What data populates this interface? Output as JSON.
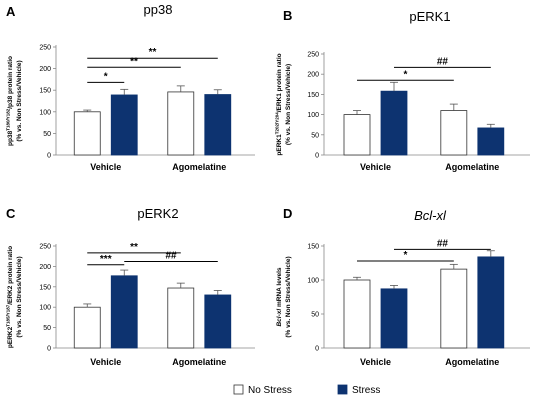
{
  "chart_data": [
    {
      "type": "bar",
      "letter": "A",
      "title": "pp38",
      "title_italic": false,
      "ylabel_line1": "pp38",
      "ylabel_sup": "T180/Y182",
      "ylabel_rest": "/p38 protein ratio",
      "ylabel_line2": "(% vs. Non Stress/Vehicle)",
      "categories": [
        "Vehicle",
        "Agomelatine"
      ],
      "ylim": [
        0,
        250
      ],
      "yticks": [
        "0",
        "50",
        "100",
        "150",
        "200",
        "250"
      ],
      "series": [
        {
          "name": "No Stress",
          "values": [
            100,
            146
          ],
          "errors": [
            4,
            14
          ]
        },
        {
          "name": "Stress",
          "values": [
            139,
            140
          ],
          "errors": [
            13,
            11
          ]
        }
      ],
      "significance": [
        {
          "label": "*",
          "from": [
            0,
            0
          ],
          "to": [
            0,
            1
          ],
          "y": 168
        },
        {
          "label": "**",
          "from": [
            0,
            0
          ],
          "to": [
            1,
            0
          ],
          "y": 203
        },
        {
          "label": "**",
          "from": [
            0,
            0
          ],
          "to": [
            1,
            1
          ],
          "y": 224
        }
      ]
    },
    {
      "type": "bar",
      "letter": "B",
      "title": "pERK1",
      "title_italic": false,
      "ylabel_line1": "pERK1",
      "ylabel_sup": "T202/Y204",
      "ylabel_rest": "/ERK1 protein ratio",
      "ylabel_line2": "(% vs. Non Stress/Vehicle)",
      "categories": [
        "Vehicle",
        "Agomelatine"
      ],
      "ylim": [
        0,
        250
      ],
      "yticks": [
        "0",
        "50",
        "100",
        "150",
        "200",
        "250"
      ],
      "series": [
        {
          "name": "No Stress",
          "values": [
            100,
            110
          ],
          "errors": [
            10,
            16
          ]
        },
        {
          "name": "Stress",
          "values": [
            158,
            67
          ],
          "errors": [
            22,
            9
          ]
        }
      ],
      "significance": [
        {
          "label": "*",
          "from": [
            0,
            0
          ],
          "to": [
            1,
            0
          ],
          "y": 185
        },
        {
          "label": "##",
          "from": [
            0,
            1
          ],
          "to": [
            1,
            1
          ],
          "y": 217
        }
      ]
    },
    {
      "type": "bar",
      "letter": "C",
      "title": "pERK2",
      "title_italic": false,
      "ylabel_line1": "pERK2",
      "ylabel_sup": "T185/Y187",
      "ylabel_rest": "/ERK2 protein ratio",
      "ylabel_line2": "(% vs. Non Stress/Vehicle)",
      "categories": [
        "Vehicle",
        "Agomelatine"
      ],
      "ylim": [
        0,
        250
      ],
      "yticks": [
        "0",
        "50",
        "100",
        "150",
        "200",
        "250"
      ],
      "series": [
        {
          "name": "No Stress",
          "values": [
            100,
            147
          ],
          "errors": [
            8,
            12
          ]
        },
        {
          "name": "Stress",
          "values": [
            177,
            130
          ],
          "errors": [
            14,
            11
          ]
        }
      ],
      "significance": [
        {
          "label": "***",
          "from": [
            0,
            0
          ],
          "to": [
            0,
            1
          ],
          "y": 204
        },
        {
          "label": "##",
          "from": [
            0,
            1
          ],
          "to": [
            1,
            1
          ],
          "y": 212
        },
        {
          "label": "**",
          "from": [
            0,
            0
          ],
          "to": [
            1,
            0
          ],
          "y": 233
        }
      ]
    },
    {
      "type": "bar",
      "letter": "D",
      "title": "Bcl-xl",
      "title_italic": true,
      "ylabel_line1": "Bcl-xl",
      "ylabel_line1_italic": true,
      "ylabel_sup": "",
      "ylabel_rest": " mRNA levels",
      "ylabel_line2": "(% vs. Non Stress/Vehicle)",
      "categories": [
        "Vehicle",
        "Agomelatine"
      ],
      "ylim": [
        0,
        150
      ],
      "yticks": [
        "0",
        "50",
        "100",
        "150"
      ],
      "series": [
        {
          "name": "No Stress",
          "values": [
            100,
            116
          ],
          "errors": [
            4,
            7
          ]
        },
        {
          "name": "Stress",
          "values": [
            87,
            134
          ],
          "errors": [
            5,
            9
          ]
        }
      ],
      "significance": [
        {
          "label": "*",
          "from": [
            0,
            0
          ],
          "to": [
            1,
            0
          ],
          "y": 128
        },
        {
          "label": "##",
          "from": [
            0,
            1
          ],
          "to": [
            1,
            1
          ],
          "y": 145
        }
      ]
    }
  ],
  "legend": {
    "items": [
      {
        "label": "No Stress",
        "color": "#ffffff"
      },
      {
        "label": "Stress",
        "color": "#0d3370"
      }
    ]
  },
  "colors": {
    "stress": "#0d3370",
    "no_stress": "#ffffff",
    "axis": "#888888"
  }
}
